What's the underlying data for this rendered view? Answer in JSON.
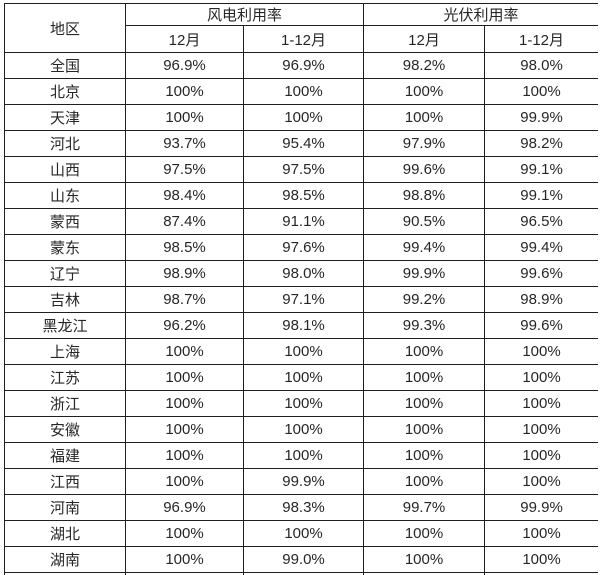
{
  "chart_data": {
    "type": "table",
    "region_header": "地区",
    "column_groups": [
      {
        "label": "风电利用率",
        "subcolumns": [
          "12月",
          "1-12月"
        ]
      },
      {
        "label": "光伏利用率",
        "subcolumns": [
          "12月",
          "1-12月"
        ]
      }
    ],
    "rows": [
      {
        "region": "全国",
        "values": [
          "96.9%",
          "96.9%",
          "98.2%",
          "98.0%"
        ]
      },
      {
        "region": "北京",
        "values": [
          "100%",
          "100%",
          "100%",
          "100%"
        ]
      },
      {
        "region": "天津",
        "values": [
          "100%",
          "100%",
          "100%",
          "99.9%"
        ]
      },
      {
        "region": "河北",
        "values": [
          "93.7%",
          "95.4%",
          "97.9%",
          "98.2%"
        ]
      },
      {
        "region": "山西",
        "values": [
          "97.5%",
          "97.5%",
          "99.6%",
          "99.1%"
        ]
      },
      {
        "region": "山东",
        "values": [
          "98.4%",
          "98.5%",
          "98.8%",
          "99.1%"
        ]
      },
      {
        "region": "蒙西",
        "values": [
          "87.4%",
          "91.1%",
          "90.5%",
          "96.5%"
        ]
      },
      {
        "region": "蒙东",
        "values": [
          "98.5%",
          "97.6%",
          "99.4%",
          "99.4%"
        ]
      },
      {
        "region": "辽宁",
        "values": [
          "98.9%",
          "98.0%",
          "99.9%",
          "99.6%"
        ]
      },
      {
        "region": "吉林",
        "values": [
          "98.7%",
          "97.1%",
          "99.2%",
          "98.9%"
        ]
      },
      {
        "region": "黑龙江",
        "values": [
          "96.2%",
          "98.1%",
          "99.3%",
          "99.6%"
        ]
      },
      {
        "region": "上海",
        "values": [
          "100%",
          "100%",
          "100%",
          "100%"
        ]
      },
      {
        "region": "江苏",
        "values": [
          "100%",
          "100%",
          "100%",
          "100%"
        ]
      },
      {
        "region": "浙江",
        "values": [
          "100%",
          "100%",
          "100%",
          "100%"
        ]
      },
      {
        "region": "安徽",
        "values": [
          "100%",
          "100%",
          "100%",
          "100%"
        ]
      },
      {
        "region": "福建",
        "values": [
          "100%",
          "100%",
          "100%",
          "100%"
        ]
      },
      {
        "region": "江西",
        "values": [
          "100%",
          "99.9%",
          "100%",
          "100%"
        ]
      },
      {
        "region": "河南",
        "values": [
          "96.9%",
          "98.3%",
          "99.7%",
          "99.9%"
        ]
      },
      {
        "region": "湖北",
        "values": [
          "100%",
          "100%",
          "100%",
          "100%"
        ]
      },
      {
        "region": "湖南",
        "values": [
          "100%",
          "99.0%",
          "100%",
          "100%"
        ]
      }
    ]
  },
  "colors": {
    "border": "#1f1f1f",
    "text": "#262626",
    "background": "#ffffff"
  }
}
